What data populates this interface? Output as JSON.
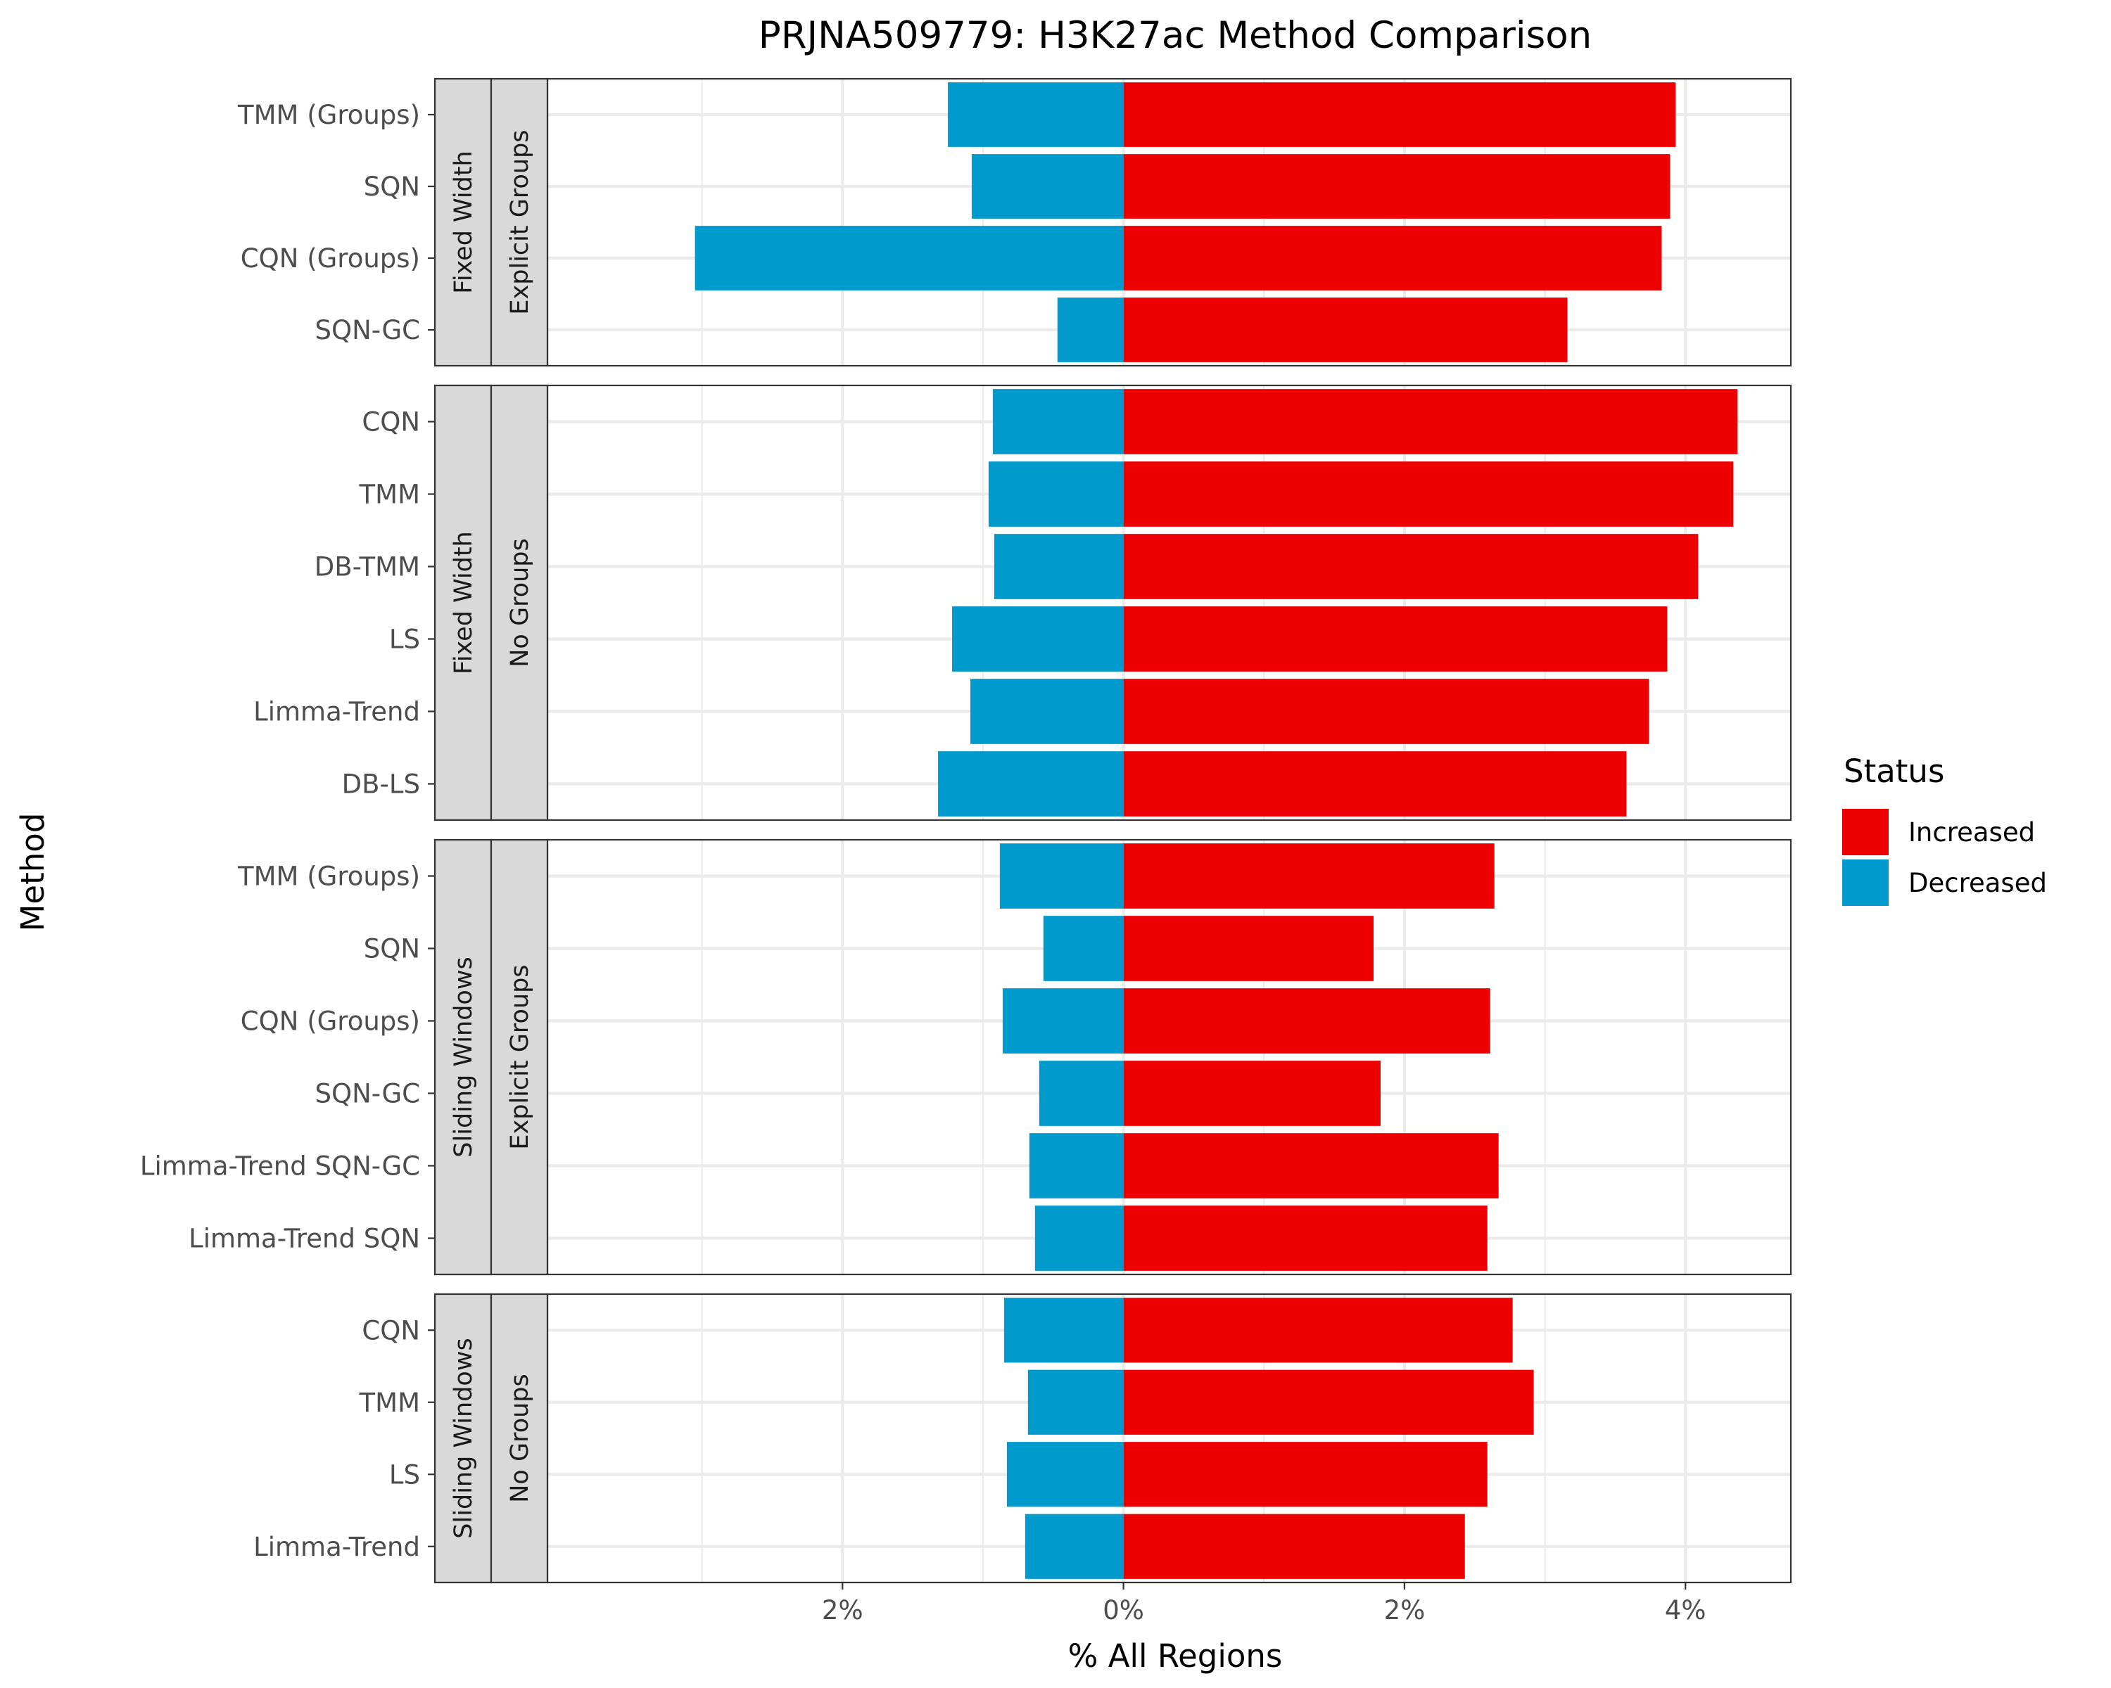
{
  "chart_data": {
    "type": "bar",
    "orientation": "horizontal",
    "title": "PRJNA509779: H3K27ac Method Comparison",
    "xlabel": "% All Regions",
    "ylabel": "Method",
    "xlim": [
      -4.1,
      4.75
    ],
    "x_ticks": [
      -2,
      0,
      2,
      4
    ],
    "x_tick_labels": [
      "2%",
      "0%",
      "2%",
      "4%"
    ],
    "grid": true,
    "legend": {
      "title": "Status",
      "position": "right",
      "entries": [
        {
          "name": "Increased",
          "color": "#ee0000"
        },
        {
          "name": "Decreased",
          "color": "#009acd"
        }
      ]
    },
    "panels": [
      {
        "strips": [
          "Fixed Width",
          "Explicit Groups"
        ],
        "categories": [
          "TMM (Groups)",
          "SQN",
          "CQN (Groups)",
          "SQN-GC"
        ],
        "increased": [
          3.93,
          3.89,
          3.83,
          3.16
        ],
        "decreased": [
          1.25,
          1.08,
          3.05,
          0.47
        ]
      },
      {
        "strips": [
          "Fixed Width",
          "No Groups"
        ],
        "categories": [
          "CQN",
          "TMM",
          "DB-TMM",
          "LS",
          "Limma-Trend ",
          "DB-LS"
        ],
        "increased": [
          4.37,
          4.34,
          4.09,
          3.87,
          3.74,
          3.58
        ],
        "decreased": [
          0.93,
          0.96,
          0.92,
          1.22,
          1.09,
          1.32
        ]
      },
      {
        "strips": [
          "Sliding Windows",
          "Explicit Groups"
        ],
        "categories": [
          "TMM (Groups)",
          "SQN",
          "CQN (Groups)",
          "SQN-GC",
          "Limma-Trend SQN-GC",
          "Limma-Trend SQN"
        ],
        "increased": [
          2.64,
          1.78,
          2.61,
          1.83,
          2.67,
          2.59
        ],
        "decreased": [
          0.88,
          0.57,
          0.86,
          0.6,
          0.67,
          0.63
        ]
      },
      {
        "strips": [
          "Sliding Windows",
          "No Groups"
        ],
        "categories": [
          "CQN",
          "TMM",
          "LS",
          "Limma-Trend "
        ],
        "increased": [
          2.77,
          2.92,
          2.59,
          2.43
        ],
        "decreased": [
          0.85,
          0.68,
          0.83,
          0.7
        ]
      }
    ]
  }
}
